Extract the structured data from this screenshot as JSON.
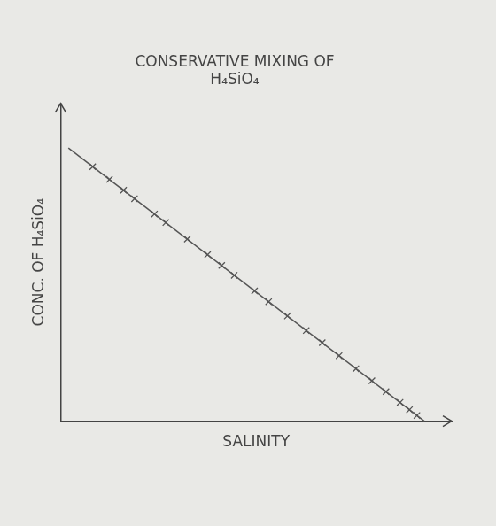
{
  "chart_data": {
    "type": "scatter",
    "title": [
      "CONSERVATIVE MIXING OF",
      "H₄SiO₄"
    ],
    "x_label": "SALINITY",
    "y_label": "CONC. OF H₄SiO₄",
    "xlim": [
      0,
      10
    ],
    "ylim": [
      0,
      10
    ],
    "tick_labels": false,
    "grid": false,
    "series": [
      {
        "type": "line",
        "color": "#555555",
        "line_style": "solid",
        "x": [
          0.2,
          9.3
        ],
        "values": [
          8.6,
          0
        ]
      },
      {
        "type": "scatter",
        "color": "#555555",
        "marker": "x",
        "x": [
          0.82,
          1.25,
          1.61,
          1.89,
          2.4,
          2.69,
          3.24,
          3.76,
          4.12,
          4.44,
          4.96,
          5.32,
          5.8,
          6.28,
          6.69,
          7.12,
          7.55,
          7.96,
          8.32,
          8.68,
          8.92,
          9.11
        ],
        "values": [
          8.01,
          7.61,
          7.27,
          7.0,
          6.52,
          6.25,
          5.73,
          5.24,
          4.9,
          4.59,
          4.1,
          3.76,
          3.31,
          2.85,
          2.47,
          2.06,
          1.65,
          1.27,
          0.93,
          0.59,
          0.36,
          0.18
        ]
      }
    ]
  }
}
